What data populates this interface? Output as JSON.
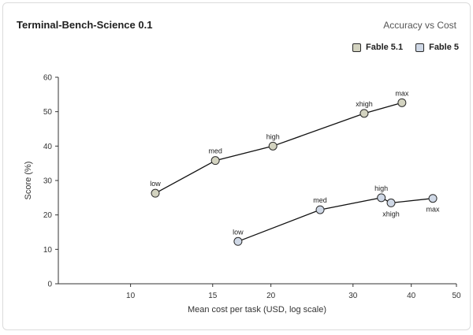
{
  "chart_data": {
    "type": "line",
    "title": "Terminal-Bench-Science 0.1",
    "subtitle": "Accuracy vs Cost",
    "xlabel": "Mean cost per task (USD, log scale)",
    "ylabel": "Score (%)",
    "x_scale": "log",
    "xlim": [
      7,
      50
    ],
    "ylim": [
      0,
      60
    ],
    "x_ticks": [
      10,
      15,
      20,
      30,
      40,
      50
    ],
    "y_ticks": [
      0,
      10,
      20,
      30,
      40,
      50,
      60
    ],
    "grid": false,
    "legend_position": "top-right",
    "series": [
      {
        "name": "Fable 5.1",
        "color": "#d3d3c0",
        "points": [
          {
            "label": "low",
            "x": 11.3,
            "y": 26.3
          },
          {
            "label": "med",
            "x": 15.2,
            "y": 35.8
          },
          {
            "label": "high",
            "x": 20.2,
            "y": 40.0
          },
          {
            "label": "xhigh",
            "x": 31.7,
            "y": 49.5
          },
          {
            "label": "max",
            "x": 38.2,
            "y": 52.6
          }
        ]
      },
      {
        "name": "Fable 5",
        "color": "#cfd8e6",
        "points": [
          {
            "label": "low",
            "x": 17.0,
            "y": 12.3
          },
          {
            "label": "med",
            "x": 25.5,
            "y": 21.5
          },
          {
            "label": "high",
            "x": 34.5,
            "y": 25.0
          },
          {
            "label": "xhigh",
            "x": 36.2,
            "y": 23.5
          },
          {
            "label": "max",
            "x": 44.5,
            "y": 24.8
          }
        ]
      }
    ]
  }
}
